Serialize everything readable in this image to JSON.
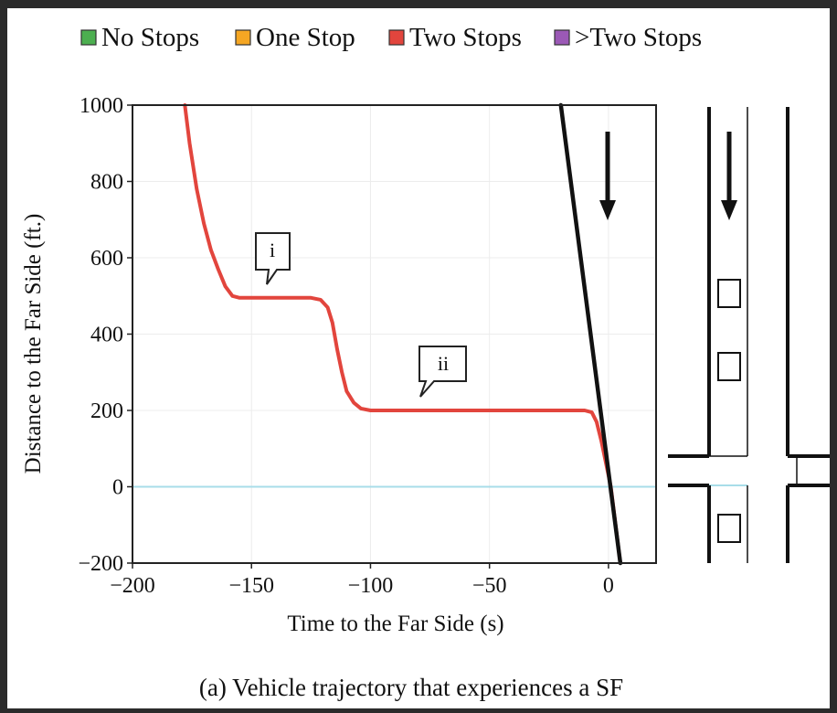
{
  "legend": [
    {
      "label": "No Stops",
      "color": "#4caf50"
    },
    {
      "label": "One Stop",
      "color": "#f5a623"
    },
    {
      "label": "Two Stops",
      "color": "#e2453d"
    },
    {
      "label": ">Two Stops",
      "color": "#9b59b6"
    }
  ],
  "caption": "(a) Vehicle trajectory that experiences a SF",
  "chart_data": {
    "type": "line",
    "title": "",
    "xlabel": "Time to the Far Side (s)",
    "ylabel": "Distance to the Far Side (ft.)",
    "xlim": [
      -200,
      20
    ],
    "ylim": [
      -200,
      1000
    ],
    "x_ticks": [
      -200,
      -150,
      -100,
      -50,
      0
    ],
    "x_tick_labels": [
      "−200",
      "−150",
      "−100",
      "−50",
      "0"
    ],
    "y_ticks": [
      -200,
      0,
      200,
      400,
      600,
      800,
      1000
    ],
    "y_tick_labels": [
      "−200",
      "0",
      "200",
      "400",
      "600",
      "800",
      "1000"
    ],
    "grid": true,
    "series": [
      {
        "name": "Two Stops",
        "color": "#e2453d",
        "points": [
          [
            -178,
            1000
          ],
          [
            -176,
            900
          ],
          [
            -173,
            780
          ],
          [
            -170,
            690
          ],
          [
            -167,
            620
          ],
          [
            -164,
            570
          ],
          [
            -161,
            525
          ],
          [
            -158,
            500
          ],
          [
            -155,
            495
          ],
          [
            -140,
            495
          ],
          [
            -125,
            495
          ],
          [
            -121,
            490
          ],
          [
            -118,
            470
          ],
          [
            -116,
            430
          ],
          [
            -114,
            360
          ],
          [
            -112,
            300
          ],
          [
            -110,
            250
          ],
          [
            -107,
            220
          ],
          [
            -104,
            205
          ],
          [
            -100,
            200
          ],
          [
            -60,
            200
          ],
          [
            -20,
            200
          ],
          [
            -10,
            200
          ],
          [
            -7,
            195
          ],
          [
            -5,
            170
          ],
          [
            -3,
            120
          ],
          [
            -1,
            60
          ],
          [
            1,
            0
          ],
          [
            3,
            -100
          ],
          [
            5,
            -200
          ]
        ]
      },
      {
        "name": "",
        "color": "#111111",
        "points": [
          [
            -20,
            1000
          ],
          [
            5,
            -200
          ]
        ]
      }
    ],
    "reference_line": {
      "y": 0,
      "color": "#a8dde9"
    },
    "annotations": [
      {
        "text": "i",
        "x": -143,
        "y": 545
      },
      {
        "text": "ii",
        "x": -68,
        "y": 305
      }
    ]
  }
}
